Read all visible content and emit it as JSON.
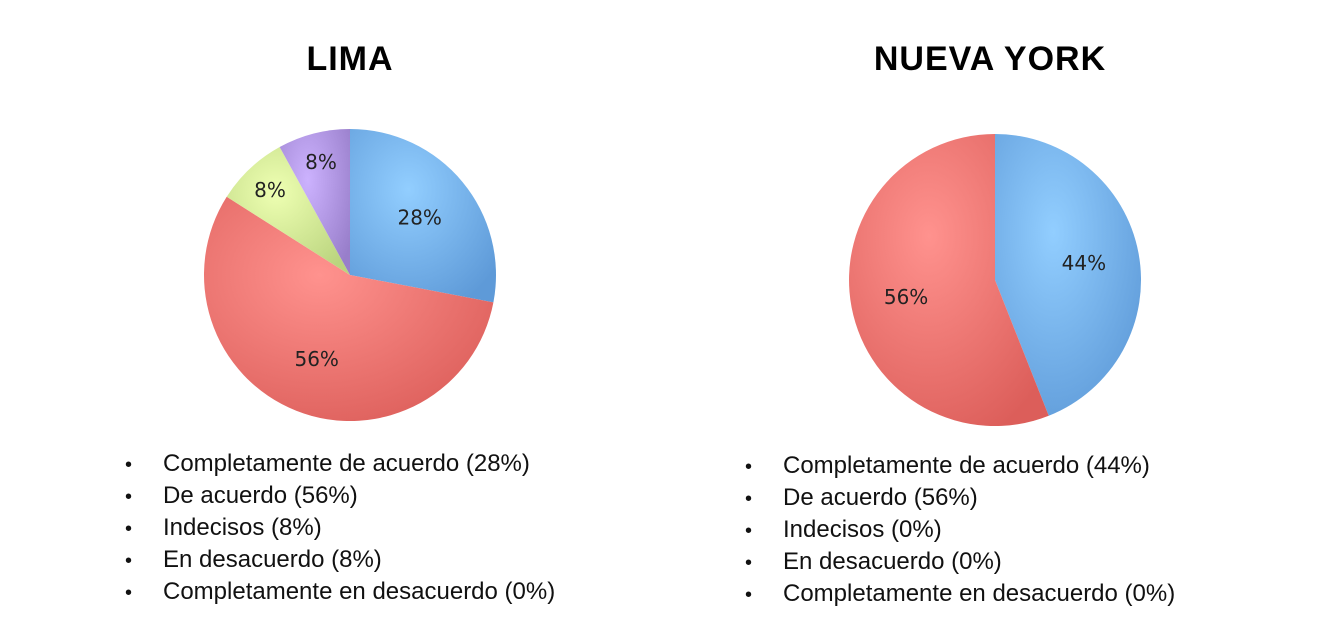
{
  "colors": {
    "completamente_de_acuerdo": "#6aa6e4",
    "de_acuerdo": "#e86a66",
    "indecisos": "#c6e08a",
    "en_desacuerdo": "#a48ad6",
    "completamente_en_desacuerdo": "#f2b37a"
  },
  "chart_data": [
    {
      "type": "pie",
      "title": "LIMA",
      "categories": [
        "Completamente de acuerdo",
        "De acuerdo",
        "Indecisos",
        "En desacuerdo",
        "Completamente en desacuerdo"
      ],
      "values": [
        28,
        56,
        8,
        8,
        0
      ],
      "slice_labels": [
        "28%",
        "56%",
        "8%",
        "8%",
        ""
      ],
      "legend": [
        "Completamente de acuerdo (28%)",
        "De acuerdo (56%)",
        "Indecisos (8%)",
        "En desacuerdo (8%)",
        "Completamente en desacuerdo (0%)"
      ]
    },
    {
      "type": "pie",
      "title": "NUEVA YORK",
      "categories": [
        "Completamente de acuerdo",
        "De acuerdo",
        "Indecisos",
        "En desacuerdo",
        "Completamente en desacuerdo"
      ],
      "values": [
        44,
        56,
        0,
        0,
        0
      ],
      "slice_labels": [
        "44%",
        "56%",
        "",
        "",
        ""
      ],
      "legend": [
        "Completamente de acuerdo (44%)",
        "De acuerdo (56%)",
        "Indecisos (0%)",
        "En desacuerdo (0%)",
        "Completamente en desacuerdo (0%)"
      ]
    }
  ],
  "bullet_glyph": "•"
}
